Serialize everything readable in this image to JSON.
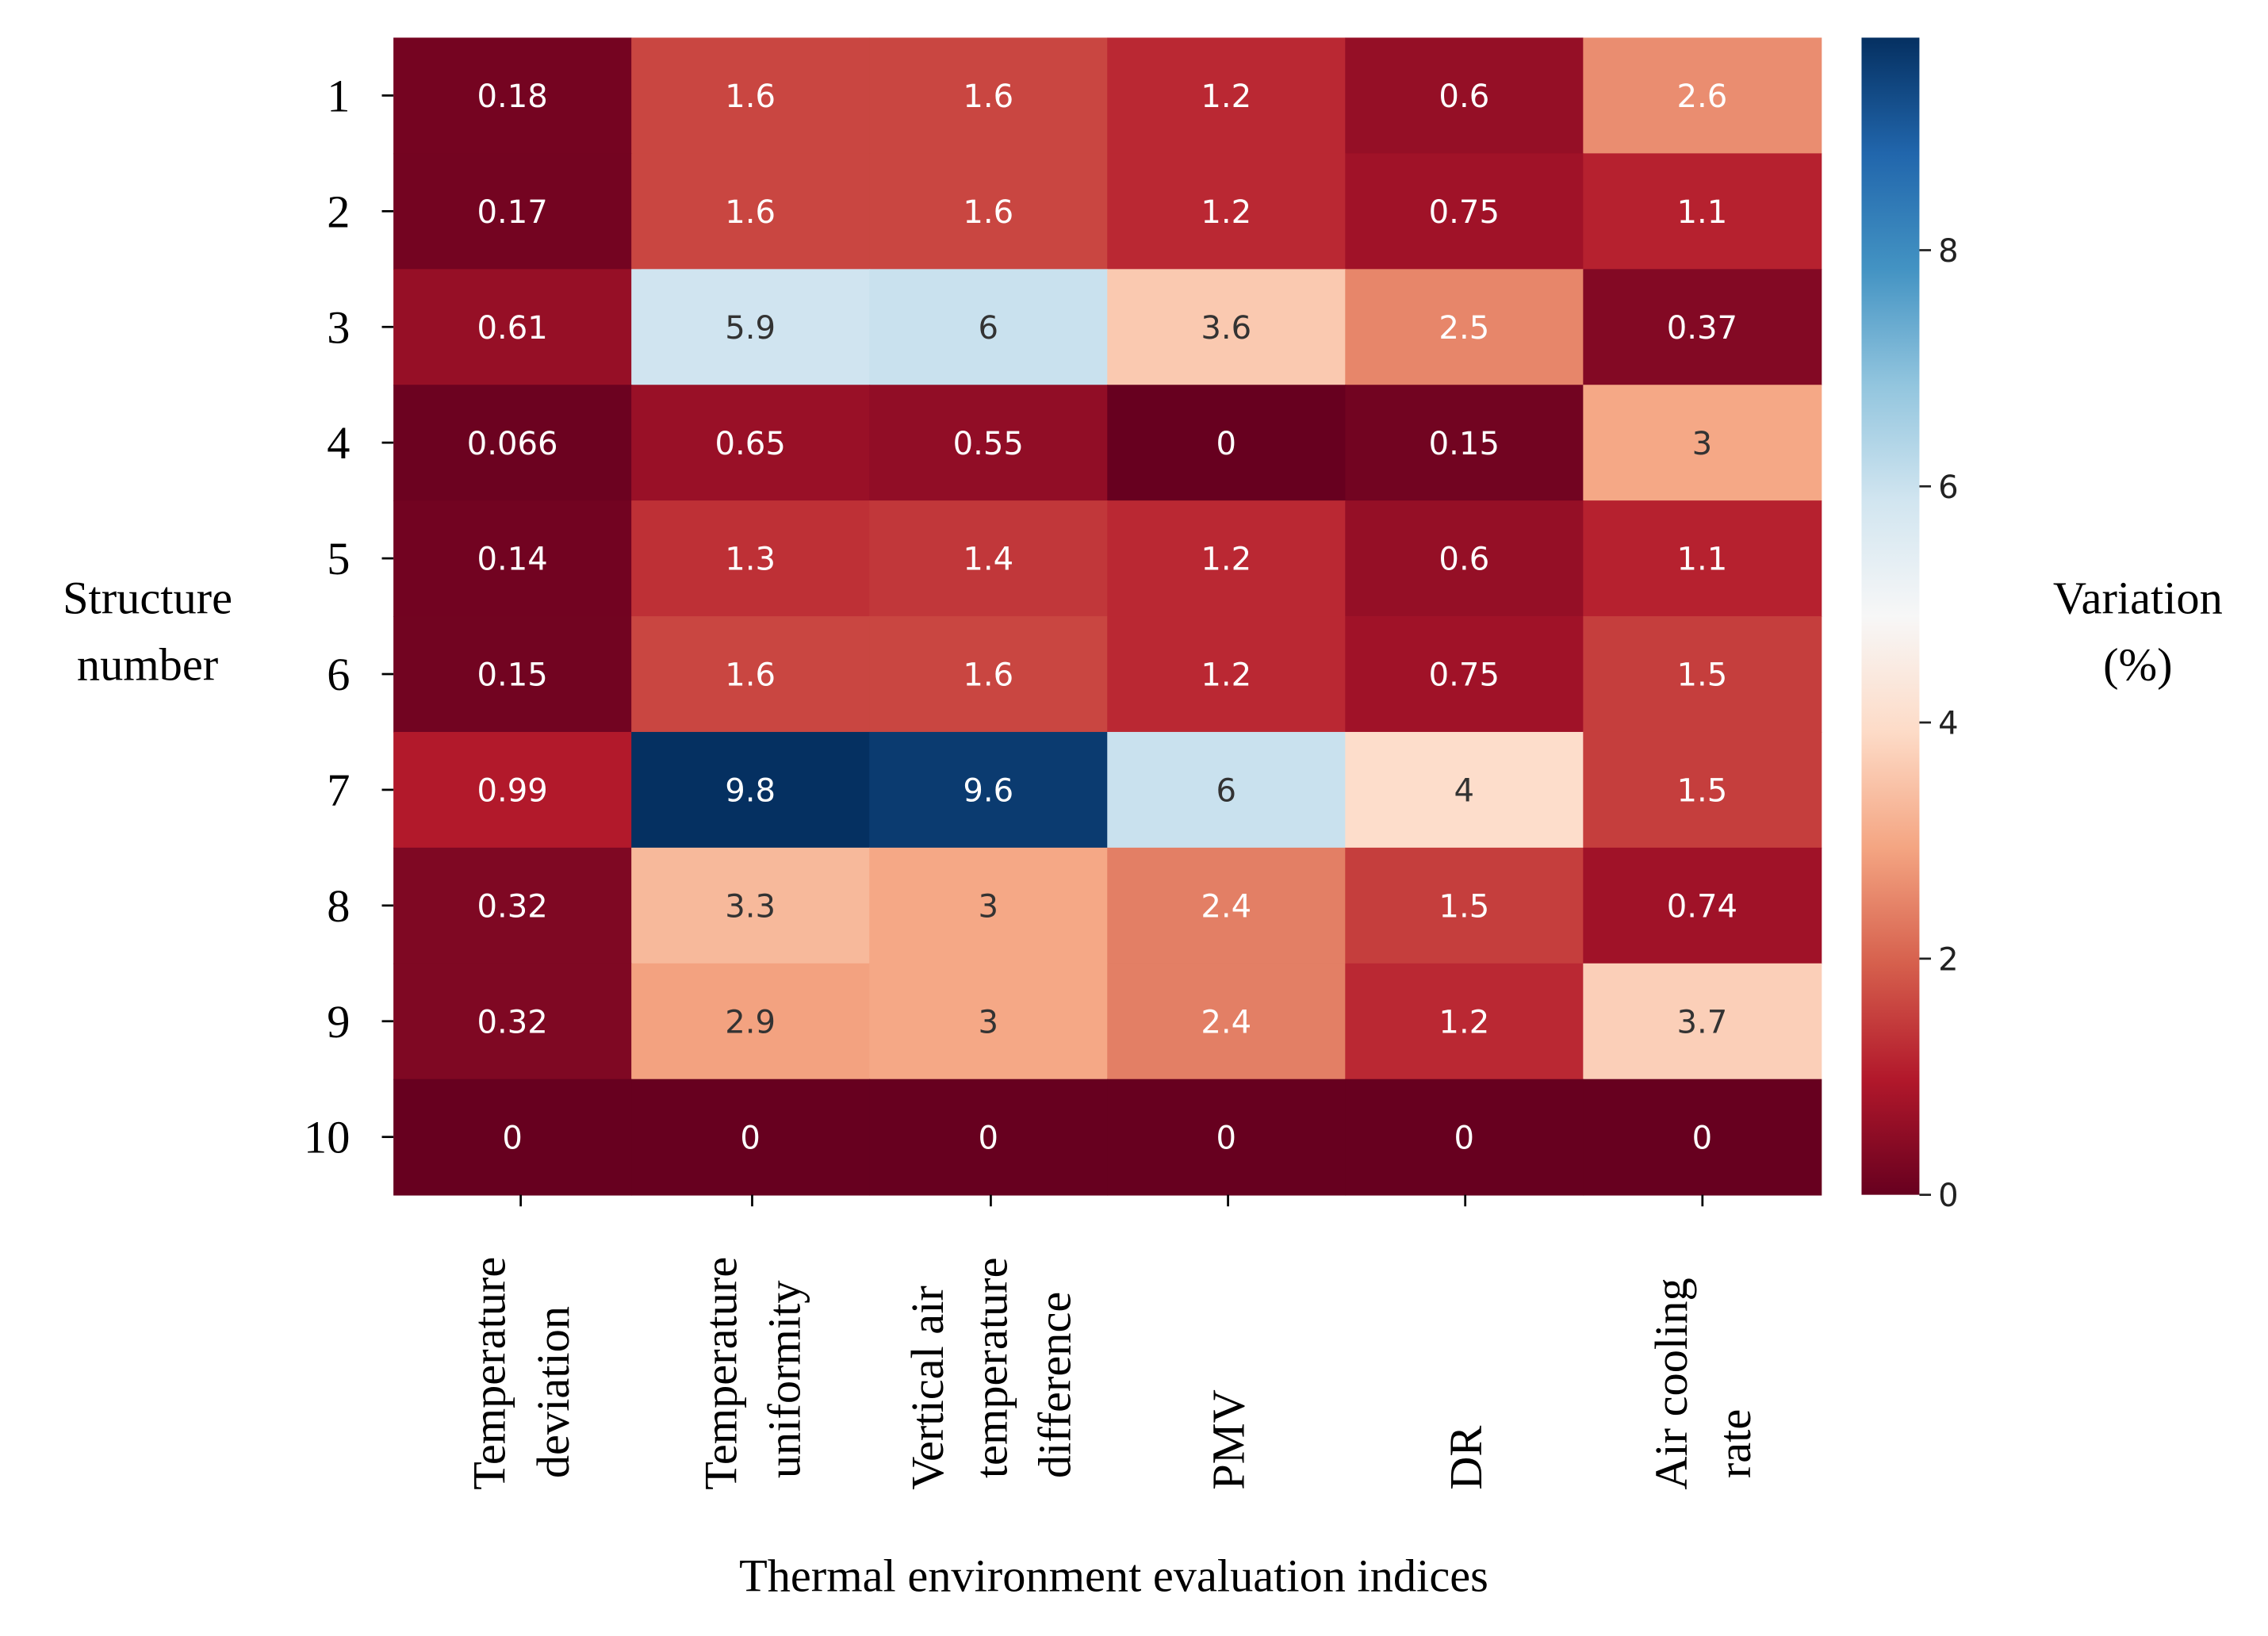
{
  "chart_data": {
    "type": "heatmap",
    "title": "",
    "xlabel": "Thermal environment evaluation indices",
    "ylabel": "Structure number",
    "colorbar_label": "Variation (%)",
    "colormap": "RdBu",
    "vmin": 0,
    "vmax": 9.8,
    "colorbar_ticks": [
      "0",
      "2",
      "4",
      "6",
      "8"
    ],
    "columns": [
      [
        "Temperature",
        "deviation"
      ],
      [
        "Temperature",
        "uniformity"
      ],
      [
        "Vertical air",
        "temperature",
        "difference"
      ],
      [
        "PMV"
      ],
      [
        "DR"
      ],
      [
        "Air cooling",
        "rate"
      ]
    ],
    "rows": [
      "1",
      "2",
      "3",
      "4",
      "5",
      "6",
      "7",
      "8",
      "9",
      "10"
    ],
    "values": [
      [
        "0.18",
        "1.6",
        "1.6",
        "1.2",
        "0.6",
        "2.6"
      ],
      [
        "0.17",
        "1.6",
        "1.6",
        "1.2",
        "0.75",
        "1.1"
      ],
      [
        "0.61",
        "5.9",
        "6",
        "3.6",
        "2.5",
        "0.37"
      ],
      [
        "0.066",
        "0.65",
        "0.55",
        "0",
        "0.15",
        "3"
      ],
      [
        "0.14",
        "1.3",
        "1.4",
        "1.2",
        "0.6",
        "1.1"
      ],
      [
        "0.15",
        "1.6",
        "1.6",
        "1.2",
        "0.75",
        "1.5"
      ],
      [
        "0.99",
        "9.8",
        "9.6",
        "6",
        "4",
        "1.5"
      ],
      [
        "0.32",
        "3.3",
        "3",
        "2.4",
        "1.5",
        "0.74"
      ],
      [
        "0.32",
        "2.9",
        "3",
        "2.4",
        "1.2",
        "3.7"
      ],
      [
        "0",
        "0",
        "0",
        "0",
        "0",
        "0"
      ]
    ]
  }
}
